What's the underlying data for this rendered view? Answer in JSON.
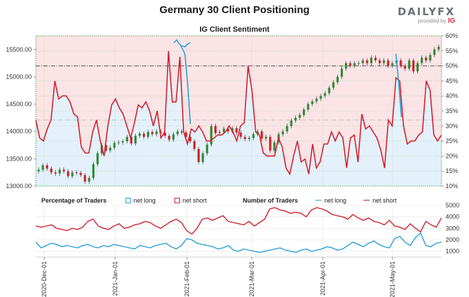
{
  "header": {
    "title": "Germany 30 Client Positioning",
    "subtitle": "IG Client Sentiment"
  },
  "brand": {
    "logo_left": "DAILY",
    "logo_right": "FX",
    "provided_by": "provided by",
    "provider": "IG"
  },
  "colors": {
    "long": "#2a9fd8",
    "short": "#d0202e",
    "bull": "#2e8b35",
    "bear": "#d0202e",
    "bg_long": "#e4f1fb",
    "bg_short": "#fbe4e6"
  },
  "legend": {
    "percentage_title": "Percentage of Traders",
    "pct_long": "net long",
    "pct_short": "net short",
    "number_title": "Number of Traders",
    "num_long": "net long",
    "num_short": "net short"
  },
  "chart_data": [
    {
      "type": "candlestick+line",
      "y_left_label_ticks": [
        "13000.00",
        "13500.00",
        "14000.00",
        "14500.00",
        "15000.00",
        "15500.00"
      ],
      "ylim_left": [
        13000,
        15750
      ],
      "y_right_ticks": [
        "10%",
        "15%",
        "20%",
        "25%",
        "30%",
        "35%",
        "40%",
        "45%",
        "50%",
        "55%",
        "60%"
      ],
      "ylim_right": [
        10,
        60
      ],
      "x_ticks": [
        "2020-Dec-01",
        "2021-Jan-01",
        "2021-Feb-01",
        "2021-Mar-01",
        "2021-Apr-01",
        "2021-May-01"
      ],
      "reference_line_pct": 50,
      "price_close": [
        13300,
        13380,
        13320,
        13250,
        13230,
        13300,
        13270,
        13180,
        13250,
        13240,
        13200,
        13080,
        13150,
        13400,
        13600,
        13750,
        13650,
        13700,
        13790,
        13800,
        13820,
        13900,
        13780,
        13920,
        13960,
        13900,
        13990,
        13950,
        14000,
        13980,
        13920,
        13850,
        13950,
        14000,
        13980,
        13900,
        13820,
        13680,
        13440,
        13600,
        13760,
        14100,
        13970,
        13990,
        14050,
        14000,
        14060,
        13980,
        13900,
        13860,
        13880,
        13950,
        14000,
        13870,
        13900,
        13650,
        13800,
        13950,
        14000,
        14100,
        14200,
        14250,
        14300,
        14400,
        14500,
        14550,
        14600,
        14650,
        14700,
        14800,
        14900,
        15000,
        15150,
        15250,
        15200,
        15250,
        15250,
        15300,
        15250,
        15350,
        15300,
        15250,
        15300,
        15200,
        15250,
        15300,
        15200,
        15150,
        15300,
        15100,
        15250,
        15350,
        15300,
        15400,
        15500,
        15550
      ],
      "pct_short": [
        32,
        26,
        25,
        29,
        32,
        45,
        39,
        40,
        40,
        38,
        34,
        33,
        23,
        21,
        21,
        28,
        32,
        25,
        20,
        30,
        37,
        39,
        36,
        34,
        30,
        26,
        31,
        37,
        36,
        38,
        35,
        30,
        35,
        26,
        28,
        55,
        38,
        38,
        53,
        28,
        24,
        29,
        28,
        30,
        28,
        25,
        25,
        26,
        27,
        27,
        28,
        30,
        28,
        25,
        30,
        31,
        50,
        42,
        28,
        27,
        21,
        20,
        20,
        20,
        26,
        23,
        16,
        14,
        20,
        25,
        18,
        19,
        14,
        24,
        16,
        18,
        24,
        24,
        28,
        25,
        28,
        26,
        16,
        26,
        27,
        18,
        34,
        29,
        30,
        28,
        26,
        22,
        16,
        32,
        30,
        46,
        45,
        30,
        24,
        25,
        25,
        27,
        28,
        45,
        42,
        27,
        25,
        27
      ],
      "pct_long_spikes": [
        {
          "x": "2021-Jan-26",
          "value": 58
        },
        {
          "x": "2021-Jan-29",
          "value": 57
        },
        {
          "x": "2021-Feb-26",
          "value": 52
        },
        {
          "x": "2021-May-06",
          "value": 47
        }
      ]
    },
    {
      "type": "line",
      "y_ticks": [
        "1000",
        "2000",
        "3000",
        "4000",
        "5000"
      ],
      "ylim": [
        500,
        5000
      ],
      "series": [
        {
          "name": "net long",
          "values": [
            1800,
            1300,
            1500,
            1700,
            1600,
            1400,
            1500,
            1400,
            1300,
            1500,
            1600,
            1400,
            1300,
            1500,
            1400,
            1600,
            1500,
            1400,
            1300,
            1200,
            1500,
            1400,
            1300,
            1500,
            1600,
            1700,
            1400,
            1200,
            1500,
            2100,
            2000,
            1700,
            1600,
            1500,
            1400,
            1200,
            1300,
            1500,
            1100,
            1000,
            1200,
            1100,
            1000,
            900,
            1000,
            1100,
            1200,
            1300,
            1100,
            1000,
            900,
            1100,
            1200,
            1000,
            1100,
            1200,
            1400,
            1300,
            1100,
            1200,
            1500,
            1800,
            1600,
            1400,
            1700,
            1900,
            1600,
            1400,
            1300,
            2100,
            2300,
            1800,
            1500,
            2200,
            2600,
            1500,
            1400,
            1700,
            1800
          ]
        },
        {
          "name": "net short",
          "values": [
            3200,
            3100,
            3200,
            3300,
            3000,
            2900,
            2800,
            3000,
            2900,
            3100,
            3600,
            3800,
            3200,
            3000,
            2900,
            3200,
            3400,
            3000,
            3100,
            3300,
            3400,
            3600,
            3500,
            3200,
            3000,
            3300,
            3600,
            3800,
            3500,
            2800,
            2500,
            3000,
            3800,
            3900,
            3700,
            3900,
            4100,
            3600,
            3500,
            3400,
            3300,
            3600,
            3200,
            3500,
            3800,
            4700,
            4800,
            4600,
            4500,
            4300,
            4400,
            4300,
            4000,
            4600,
            4800,
            4700,
            4500,
            4200,
            4100,
            4000,
            3800,
            4200,
            3900,
            3700,
            3900,
            3600,
            3500,
            3300,
            3700,
            3200,
            3100,
            2900,
            3400,
            3000,
            2700,
            3600,
            3300,
            3100,
            3900
          ]
        }
      ]
    }
  ]
}
